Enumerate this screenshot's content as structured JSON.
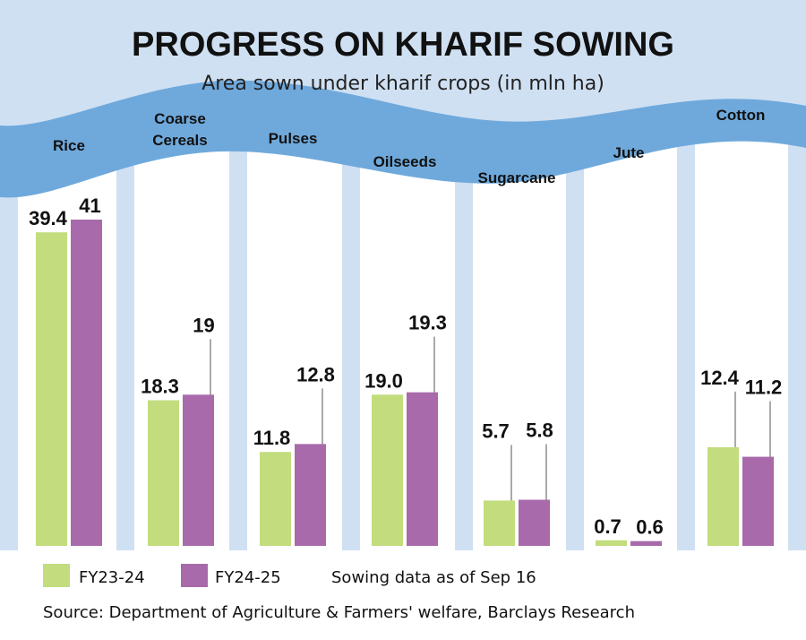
{
  "chart_data": {
    "type": "bar",
    "title": "PROGRESS ON KHARIF SOWING",
    "subtitle": "Area sown under kharif crops (in mln ha)",
    "categories": [
      "Rice",
      "Coarse Cereals",
      "Pulses",
      "Oilseeds",
      "Sugarcane",
      "Jute",
      "Cotton"
    ],
    "series": [
      {
        "name": "FY23-24",
        "color": "#c2dc7e",
        "values": [
          39.4,
          18.3,
          11.8,
          19.0,
          5.7,
          0.7,
          12.4
        ],
        "labels": [
          "39.4",
          "18.3",
          "11.8",
          "19.0",
          "5.7",
          "0.7",
          "12.4"
        ]
      },
      {
        "name": "FY24-25",
        "color": "#a86aaa",
        "values": [
          41,
          19,
          12.8,
          19.3,
          5.8,
          0.6,
          11.2
        ],
        "labels": [
          "41",
          "19",
          "12.8",
          "19.3",
          "5.8",
          "0.6",
          "11.2"
        ]
      }
    ],
    "ylim": [
      0,
      41
    ],
    "grid": false,
    "legend": "bottom-left",
    "note": "Sowing data as of Sep 16",
    "source": "Source: Department of Agriculture & Farmers' welfare, Barclays Research",
    "colors": {
      "band": "#cfe0f2",
      "wave": "#6fa9dc",
      "background": "#ffffff"
    }
  }
}
